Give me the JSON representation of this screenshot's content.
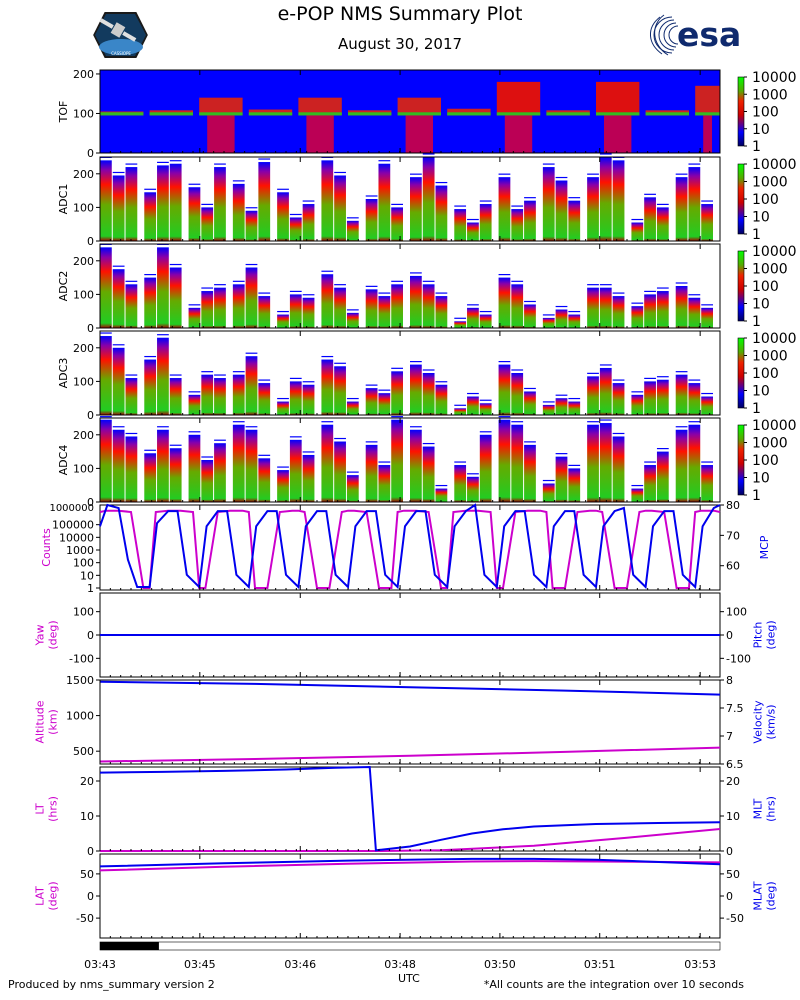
{
  "header": {
    "title": "e-POP NMS Summary Plot",
    "date": "August 30, 2017",
    "logo_right_text": "esa",
    "logo_left_caption": "CASSIOPE"
  },
  "footer": {
    "left": "Produced by nms_summary version 2",
    "right": "*All counts are the integration over 10 seconds"
  },
  "colors": {
    "magenta": "#cc00cc",
    "blue": "#0000ee",
    "spec_bg": "#0000ff",
    "esa_blue": "#0f2a6e"
  },
  "chart_data": [
    {
      "type": "heatmap",
      "name": "TOF",
      "ylabel": "TOF",
      "yticks": [
        0,
        100,
        200
      ],
      "ylim": [
        0,
        210
      ],
      "colorbar": {
        "scale": "log",
        "ticks": [
          "10000",
          "1000",
          "100",
          "10",
          "1"
        ]
      },
      "blocks": [
        {
          "t0": 0.0,
          "t1": 0.07,
          "base": 95,
          "top": 105,
          "level": 1
        },
        {
          "t0": 0.08,
          "t1": 0.15,
          "base": 95,
          "top": 108,
          "level": 1
        },
        {
          "t0": 0.16,
          "t1": 0.23,
          "base": 95,
          "top": 140,
          "level": 3
        },
        {
          "t0": 0.24,
          "t1": 0.31,
          "base": 95,
          "top": 110,
          "level": 1
        },
        {
          "t0": 0.32,
          "t1": 0.39,
          "base": 95,
          "top": 140,
          "level": 3
        },
        {
          "t0": 0.4,
          "t1": 0.47,
          "base": 95,
          "top": 108,
          "level": 1
        },
        {
          "t0": 0.48,
          "t1": 0.55,
          "base": 95,
          "top": 140,
          "level": 3
        },
        {
          "t0": 0.56,
          "t1": 0.63,
          "base": 95,
          "top": 112,
          "level": 1
        },
        {
          "t0": 0.64,
          "t1": 0.71,
          "base": 95,
          "top": 180,
          "level": 4
        },
        {
          "t0": 0.72,
          "t1": 0.79,
          "base": 95,
          "top": 108,
          "level": 1
        },
        {
          "t0": 0.8,
          "t1": 0.87,
          "base": 95,
          "top": 180,
          "level": 4
        },
        {
          "t0": 0.88,
          "t1": 0.95,
          "base": 95,
          "top": 108,
          "level": 1
        },
        {
          "t0": 0.96,
          "t1": 1.0,
          "base": 95,
          "top": 170,
          "level": 3
        }
      ]
    },
    {
      "type": "heatmap",
      "name": "ADC1",
      "ylabel": "ADC1",
      "yticks": [
        0,
        100,
        200
      ],
      "ylim": [
        0,
        250
      ],
      "colorbar": {
        "scale": "log",
        "ticks": [
          "10000",
          "1000",
          "100",
          "10",
          "1"
        ]
      },
      "bar_tops": [
        240,
        195,
        220,
        145,
        225,
        230,
        160,
        100,
        220,
        170,
        90,
        235,
        145,
        70,
        110,
        240,
        195,
        60,
        125,
        230,
        100,
        190,
        250,
        165,
        95,
        55,
        110,
        190,
        95,
        120,
        220,
        180,
        120,
        190,
        250,
        240,
        55,
        130,
        100,
        190,
        220,
        110
      ]
    },
    {
      "type": "heatmap",
      "name": "ADC2",
      "ylabel": "ADC2",
      "yticks": [
        0,
        100,
        200
      ],
      "ylim": [
        0,
        250
      ],
      "colorbar": {
        "scale": "log",
        "ticks": [
          "10000",
          "1000",
          "100",
          "10",
          "1"
        ]
      },
      "bar_tops": [
        240,
        175,
        130,
        150,
        240,
        180,
        60,
        110,
        120,
        130,
        180,
        95,
        40,
        100,
        90,
        160,
        120,
        45,
        115,
        95,
        130,
        155,
        130,
        95,
        20,
        60,
        40,
        150,
        130,
        70,
        30,
        55,
        40,
        120,
        120,
        95,
        65,
        100,
        110,
        125,
        90,
        60
      ]
    },
    {
      "type": "heatmap",
      "name": "ADC3",
      "ylabel": "ADC3",
      "yticks": [
        0,
        100,
        200
      ],
      "ylim": [
        0,
        250
      ],
      "colorbar": {
        "scale": "log",
        "ticks": [
          "10000",
          "1000",
          "100",
          "10",
          "1"
        ]
      },
      "bar_tops": [
        235,
        200,
        110,
        165,
        230,
        110,
        60,
        120,
        110,
        120,
        175,
        95,
        40,
        100,
        90,
        165,
        145,
        40,
        80,
        65,
        130,
        150,
        125,
        90,
        20,
        55,
        35,
        150,
        125,
        70,
        30,
        50,
        40,
        115,
        140,
        95,
        60,
        100,
        105,
        120,
        95,
        55
      ]
    },
    {
      "type": "heatmap",
      "name": "ADC4",
      "ylabel": "ADC4",
      "yticks": [
        0,
        100,
        200
      ],
      "ylim": [
        0,
        250
      ],
      "colorbar": {
        "scale": "log",
        "ticks": [
          "10000",
          "1000",
          "100",
          "10",
          "1"
        ]
      },
      "bar_tops": [
        245,
        215,
        195,
        145,
        215,
        160,
        200,
        125,
        175,
        230,
        215,
        130,
        95,
        185,
        140,
        230,
        180,
        80,
        170,
        110,
        245,
        215,
        165,
        40,
        110,
        75,
        200,
        245,
        230,
        170,
        55,
        135,
        100,
        230,
        235,
        195,
        40,
        110,
        150,
        215,
        230,
        110
      ]
    },
    {
      "type": "line",
      "name": "counts_mcp",
      "ylabel_left": "Counts",
      "ylabel_right": "MCP",
      "left_scale": "log",
      "left_ticks": [
        "1",
        "10",
        "100",
        "1000",
        "10000",
        "100000"
      ],
      "left_extra_tick": "1000000",
      "right_ticks": [
        60,
        70,
        80
      ],
      "right_ylim": [
        52,
        80
      ],
      "series": [
        {
          "name": "Counts",
          "color": "magenta",
          "x": [
            0.0,
            0.01,
            0.03,
            0.05,
            0.07,
            0.08,
            0.09,
            0.11,
            0.13,
            0.15,
            0.16,
            0.17,
            0.19,
            0.21,
            0.23,
            0.24,
            0.25,
            0.27,
            0.29,
            0.31,
            0.32,
            0.33,
            0.35,
            0.37,
            0.39,
            0.4,
            0.41,
            0.43,
            0.45,
            0.47,
            0.48,
            0.49,
            0.51,
            0.53,
            0.55,
            0.56,
            0.57,
            0.59,
            0.61,
            0.63,
            0.64,
            0.65,
            0.67,
            0.69,
            0.71,
            0.72,
            0.73,
            0.75,
            0.77,
            0.79,
            0.8,
            0.81,
            0.83,
            0.85,
            0.87,
            0.88,
            0.89,
            0.91,
            0.93,
            0.95,
            0.96,
            0.97,
            0.99,
            1.0
          ],
          "log_values": [
            6,
            6.1,
            6.1,
            6,
            0,
            0,
            6,
            6.1,
            6.1,
            6,
            0,
            0,
            6,
            6.1,
            6.1,
            6,
            0,
            0,
            6,
            6.1,
            6.1,
            6,
            0,
            0,
            6,
            6.1,
            6.1,
            6,
            0,
            0,
            6,
            6.1,
            6.1,
            6,
            0,
            0,
            6,
            6.1,
            6.1,
            6,
            0,
            0,
            6,
            6.1,
            6.1,
            6,
            0,
            0,
            6,
            6.1,
            6.1,
            6,
            0,
            0,
            6,
            6.1,
            6.1,
            6,
            0,
            0,
            6,
            6.1,
            6.1,
            6
          ]
        },
        {
          "name": "MCP",
          "color": "blue",
          "x": [
            0.0,
            0.012,
            0.03,
            0.045,
            0.06,
            0.08,
            0.092,
            0.11,
            0.125,
            0.14,
            0.16,
            0.172,
            0.19,
            0.205,
            0.22,
            0.24,
            0.252,
            0.27,
            0.285,
            0.3,
            0.32,
            0.332,
            0.35,
            0.365,
            0.38,
            0.4,
            0.412,
            0.43,
            0.445,
            0.46,
            0.48,
            0.492,
            0.51,
            0.525,
            0.54,
            0.56,
            0.572,
            0.59,
            0.605,
            0.62,
            0.64,
            0.652,
            0.67,
            0.685,
            0.7,
            0.72,
            0.732,
            0.75,
            0.765,
            0.78,
            0.8,
            0.812,
            0.83,
            0.845,
            0.86,
            0.88,
            0.892,
            0.91,
            0.925,
            0.94,
            0.96,
            0.972,
            0.99,
            1.0
          ],
          "values": [
            73,
            80,
            79,
            62,
            53,
            53,
            74,
            78,
            78,
            57,
            53,
            73,
            78,
            78,
            57,
            53,
            73,
            78,
            78,
            57,
            53,
            73,
            78,
            78,
            57,
            53,
            73,
            78,
            78,
            57,
            53,
            73,
            78,
            78,
            57,
            53,
            73,
            78,
            80,
            57,
            53,
            73,
            78,
            78,
            57,
            53,
            73,
            78,
            78,
            57,
            53,
            73,
            78,
            79,
            57,
            53,
            73,
            78,
            78,
            57,
            53,
            73,
            79,
            80
          ]
        }
      ]
    },
    {
      "type": "line",
      "name": "yaw_pitch",
      "ylabel_left": "Yaw\n(deg)",
      "ylabel_right": "Pitch\n(deg)",
      "left_ticks": [
        -100,
        0,
        100
      ],
      "left_ylim": [
        -180,
        180
      ],
      "right_ticks": [
        -100,
        0,
        100
      ],
      "right_ylim": [
        -180,
        180
      ],
      "series": [
        {
          "name": "Yaw",
          "color": "magenta",
          "x": [
            0,
            1
          ],
          "values": [
            0,
            0
          ]
        },
        {
          "name": "Pitch",
          "color": "blue",
          "x": [
            0,
            1
          ],
          "values": [
            0,
            0
          ]
        }
      ]
    },
    {
      "type": "line",
      "name": "altitude_velocity",
      "ylabel_left": "Altitude\n(km)",
      "ylabel_right": "Velocity\n(km/s)",
      "left_ticks": [
        500,
        1000,
        1500
      ],
      "left_ylim": [
        320,
        1500
      ],
      "right_ticks": [
        6.5,
        7.0,
        7.5,
        8.0
      ],
      "right_ylim": [
        6.5,
        8.0
      ],
      "series": [
        {
          "name": "Altitude",
          "color": "magenta",
          "x": [
            0,
            0.25,
            0.5,
            0.75,
            1.0
          ],
          "values": [
            355,
            390,
            435,
            490,
            550
          ]
        },
        {
          "name": "Velocity",
          "color": "blue",
          "x": [
            0,
            0.25,
            0.5,
            0.75,
            1.0
          ],
          "values": [
            7.97,
            7.93,
            7.87,
            7.81,
            7.74
          ]
        }
      ]
    },
    {
      "type": "line",
      "name": "lt_mlt",
      "ylabel_left": "LT\n(hrs)",
      "ylabel_right": "MLT\n(hrs)",
      "left_ticks": [
        0,
        10,
        20
      ],
      "left_ylim": [
        0,
        24
      ],
      "right_ticks": [
        0,
        10,
        20
      ],
      "right_ylim": [
        0,
        24
      ],
      "series": [
        {
          "name": "LT",
          "color": "magenta",
          "x": [
            0.0,
            0.45,
            0.55,
            0.7,
            0.85,
            1.0
          ],
          "values": [
            0,
            0,
            0.2,
            1.5,
            3.8,
            6.3
          ]
        },
        {
          "name": "MLT",
          "color": "blue",
          "x": [
            0.0,
            0.1,
            0.2,
            0.3,
            0.38,
            0.435,
            0.445,
            0.5,
            0.55,
            0.6,
            0.65,
            0.7,
            0.8,
            0.9,
            1.0
          ],
          "values": [
            22.4,
            22.6,
            22.9,
            23.3,
            23.8,
            24,
            0.2,
            1.3,
            3.2,
            5.0,
            6.2,
            7.0,
            7.7,
            8.0,
            8.2
          ]
        }
      ]
    },
    {
      "type": "line",
      "name": "lat_mlat",
      "ylabel_left": "LAT\n(deg)",
      "ylabel_right": "MLAT\n(deg)",
      "left_ticks": [
        -50,
        0,
        50
      ],
      "left_ylim": [
        -95,
        95
      ],
      "right_ticks": [
        -50,
        0,
        50
      ],
      "right_ylim": [
        -95,
        95
      ],
      "series": [
        {
          "name": "LAT",
          "color": "magenta",
          "x": [
            0,
            0.2,
            0.4,
            0.6,
            0.7,
            0.8,
            1.0
          ],
          "values": [
            58,
            66,
            73,
            78,
            79,
            78,
            76
          ]
        },
        {
          "name": "MLAT",
          "color": "blue",
          "x": [
            0,
            0.2,
            0.4,
            0.6,
            0.7,
            0.8,
            1.0
          ],
          "values": [
            67,
            74,
            80,
            84,
            84,
            82,
            72
          ]
        }
      ]
    }
  ],
  "time_axis": {
    "xlabel": "UTC",
    "ticks": [
      {
        "pos": 0.0,
        "label": "03:43"
      },
      {
        "pos": 0.161,
        "label": "03:45"
      },
      {
        "pos": 0.323,
        "label": "03:46"
      },
      {
        "pos": 0.484,
        "label": "03:48"
      },
      {
        "pos": 0.645,
        "label": "03:50"
      },
      {
        "pos": 0.806,
        "label": "03:51"
      },
      {
        "pos": 0.968,
        "label": "03:53"
      }
    ],
    "coverage_bar": [
      0.0,
      0.095
    ]
  }
}
